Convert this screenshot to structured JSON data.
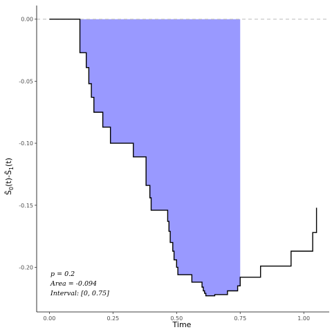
{
  "chart_data": {
    "type": "line",
    "xlabel": "Time",
    "ylabel_main": "Ŝ",
    "ylabel_sub0": "0",
    "ylabel_mid": "(t)-Ŝ",
    "ylabel_sub1": "1",
    "ylabel_end": "(t)",
    "xlim": [
      -0.05,
      1.1
    ],
    "ylim": [
      -0.236,
      0.011
    ],
    "xticks": [
      0.0,
      0.25,
      0.5,
      0.75,
      1.0
    ],
    "xtick_labels": [
      "0.00",
      "0.25",
      "0.50",
      "0.75",
      "1.00"
    ],
    "yticks": [
      0.0,
      -0.05,
      -0.1,
      -0.15,
      -0.2
    ],
    "ytick_labels": [
      "0.00",
      "-0.05",
      "-0.10",
      "-0.15",
      "-0.20"
    ],
    "grid": false,
    "reference_line": {
      "y": 0,
      "style": "dashed",
      "color": "#bbbbbb"
    },
    "shaded_interval": [
      0.0,
      0.75
    ],
    "fill_color": "#9999ff",
    "line_color": "#000000",
    "step_function": {
      "x": [
        0.0,
        0.12,
        0.12,
        0.125,
        0.145,
        0.155,
        0.165,
        0.175,
        0.21,
        0.24,
        0.33,
        0.38,
        0.395,
        0.4,
        0.465,
        0.47,
        0.475,
        0.485,
        0.49,
        0.5,
        0.505,
        0.56,
        0.6,
        0.605,
        0.61,
        0.615,
        0.625,
        0.65,
        0.7,
        0.74,
        0.75,
        0.83,
        0.95,
        1.035,
        1.05
      ],
      "y": [
        0.0,
        -0.013,
        -0.027,
        -0.027,
        -0.039,
        -0.052,
        -0.063,
        -0.075,
        -0.087,
        -0.1,
        -0.111,
        -0.134,
        -0.144,
        -0.154,
        -0.163,
        -0.171,
        -0.18,
        -0.187,
        -0.194,
        -0.2,
        -0.206,
        -0.212,
        -0.216,
        -0.219,
        -0.221,
        -0.223,
        -0.223,
        -0.222,
        -0.219,
        -0.215,
        -0.208,
        -0.199,
        -0.187,
        -0.172,
        -0.152
      ]
    },
    "annotations": {
      "p": "p = 0.2",
      "area": "Area = -0.094",
      "interval": "Interval: [0, 0.75]"
    }
  }
}
